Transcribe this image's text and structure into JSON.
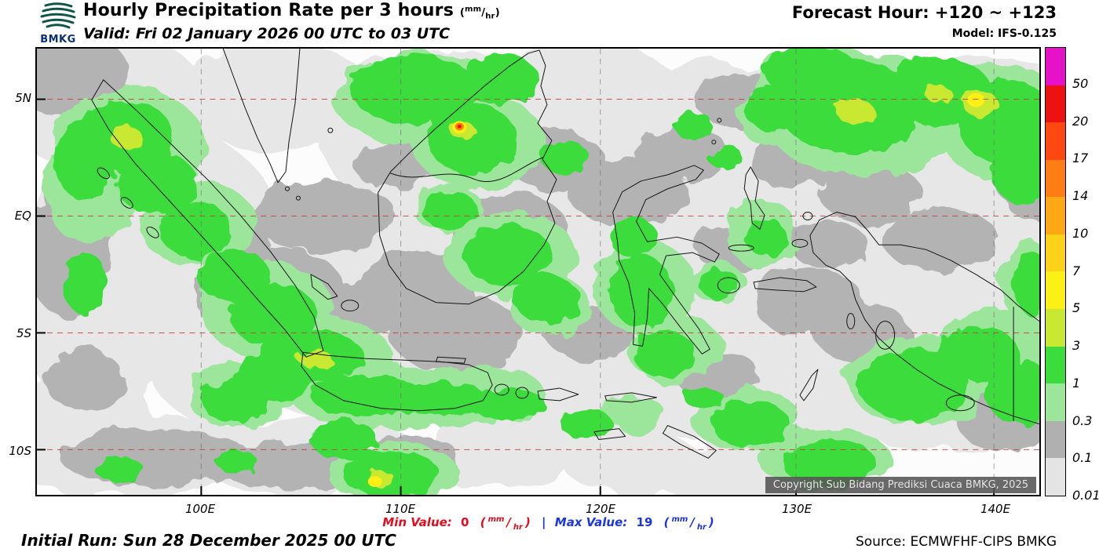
{
  "header": {
    "logo_text": "BMKG",
    "title_main": "Hourly Precipitation Rate per 3 hours ",
    "valid_line": "Valid: Fri 02 January 2026 00 UTC to 03 UTC",
    "forecast_hour": "Forecast Hour: +120 ~ +123",
    "model": "Model: IFS-0.125"
  },
  "units": {
    "open": "(",
    "mm": "mm",
    "slash": "/",
    "hr": "hr",
    "close": ")"
  },
  "map": {
    "lat_labels": [
      "5N",
      "EQ",
      "5S",
      "10S"
    ],
    "lon_labels": [
      "100E",
      "110E",
      "120E",
      "130E",
      "140E"
    ],
    "copyright": "Copyright Sub Bidang Prediksi Cuaca BMKG, 2025"
  },
  "legend": {
    "labels": [
      "50",
      "20",
      "17",
      "14",
      "10",
      "7",
      "5",
      "3",
      "1",
      "0.3",
      "0.1",
      "0.01"
    ],
    "colors": [
      "#e612c8",
      "#ee1111",
      "#ff4712",
      "#ff7d12",
      "#ffa816",
      "#ffd21a",
      "#fdf014",
      "#c8e832",
      "#3cdc3c",
      "#9ce69c",
      "#b0b0b0",
      "#e4e4e4"
    ]
  },
  "footer": {
    "min_label": "Min Value:",
    "min_value": "0",
    "separator": "|",
    "max_label": "Max Value:",
    "max_value": "19",
    "initial_run": "Initial Run: Sun 28 December 2025 00 UTC",
    "source": "Source: ECMWFHF-CIPS BMKG"
  },
  "chart_data": {
    "type": "heatmap",
    "title": "Hourly Precipitation Rate per 3 hours (mm/hr)",
    "valid": "Fri 02 January 2026 00 UTC to 03 UTC",
    "forecast_hour": "+120 ~ +123",
    "model": "IFS-0.125",
    "initial_run": "Sun 28 December 2025 00 UTC",
    "source": "ECMWFHF-CIPS BMKG",
    "region": {
      "lon_ticks": [
        "100E",
        "110E",
        "120E",
        "130E",
        "140E"
      ],
      "lat_ticks": [
        "5N",
        "EQ",
        "5S",
        "10S"
      ]
    },
    "scale_mm_per_hr": [
      0.01,
      0.1,
      0.3,
      1,
      3,
      5,
      7,
      10,
      14,
      17,
      20,
      50
    ],
    "min_value_mm_per_hr": 0,
    "max_value_mm_per_hr": 19,
    "legend_position": "right"
  }
}
